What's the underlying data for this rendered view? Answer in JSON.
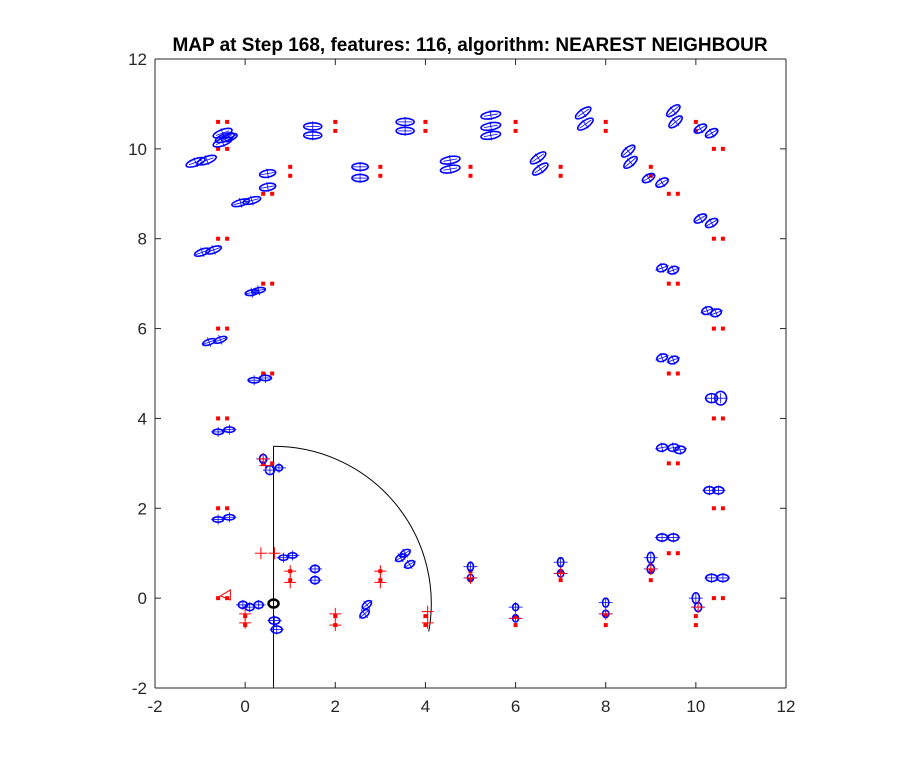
{
  "chart_data": {
    "type": "scatter",
    "title": "MAP at Step 168, features: 116, algorithm: NEAREST NEIGHBOUR",
    "xlabel": "",
    "ylabel": "",
    "xlim": [
      -2,
      12
    ],
    "ylim": [
      -2,
      12
    ],
    "xticks": [
      "-2",
      "0",
      "2",
      "4",
      "6",
      "8",
      "10",
      "12"
    ],
    "yticks": [
      "-2",
      "0",
      "2",
      "4",
      "6",
      "8",
      "10",
      "12"
    ],
    "grid": false,
    "legend": "none",
    "colors": {
      "landmarks": "#ff0000",
      "estimates": "#0000ff",
      "observations": "#ff0000",
      "robot": "#000000",
      "sensor_range": "#000000",
      "axes": "#262626"
    },
    "series": [
      {
        "marker": "square",
        "points": [
          [
            -0.6,
            10.6
          ],
          [
            -0.4,
            10.6
          ],
          [
            -0.6,
            10.0
          ],
          [
            -0.4,
            10.0
          ],
          [
            0.4,
            9.0
          ],
          [
            0.6,
            9.0
          ],
          [
            -0.6,
            8.0
          ],
          [
            -0.4,
            8.0
          ],
          [
            0.4,
            7.0
          ],
          [
            0.6,
            7.0
          ],
          [
            -0.6,
            6.0
          ],
          [
            -0.4,
            6.0
          ],
          [
            0.4,
            5.0
          ],
          [
            0.6,
            5.0
          ],
          [
            -0.6,
            4.0
          ],
          [
            -0.4,
            4.0
          ],
          [
            0.4,
            3.0
          ],
          [
            0.6,
            3.0
          ],
          [
            -0.6,
            2.0
          ],
          [
            -0.4,
            2.0
          ],
          [
            -0.6,
            0.0
          ],
          [
            -0.4,
            0.0
          ],
          [
            0.0,
            -0.4
          ],
          [
            0.0,
            -0.6
          ],
          [
            1.0,
            0.4
          ],
          [
            1.0,
            0.6
          ],
          [
            2.0,
            -0.4
          ],
          [
            2.0,
            -0.6
          ],
          [
            3.0,
            0.4
          ],
          [
            3.0,
            0.6
          ],
          [
            4.0,
            -0.4
          ],
          [
            4.0,
            -0.6
          ],
          [
            5.0,
            0.4
          ],
          [
            5.0,
            0.6
          ],
          [
            6.0,
            -0.4
          ],
          [
            6.0,
            -0.6
          ],
          [
            7.0,
            0.4
          ],
          [
            7.0,
            0.6
          ],
          [
            8.0,
            -0.4
          ],
          [
            8.0,
            -0.6
          ],
          [
            9.0,
            0.4
          ],
          [
            9.0,
            0.6
          ],
          [
            10.0,
            -0.4
          ],
          [
            10.0,
            -0.6
          ],
          [
            10.4,
            0.0
          ],
          [
            10.6,
            0.0
          ],
          [
            9.4,
            1.0
          ],
          [
            9.6,
            1.0
          ],
          [
            10.4,
            2.0
          ],
          [
            10.6,
            2.0
          ],
          [
            9.4,
            3.0
          ],
          [
            9.6,
            3.0
          ],
          [
            10.4,
            4.0
          ],
          [
            10.6,
            4.0
          ],
          [
            9.4,
            5.0
          ],
          [
            9.6,
            5.0
          ],
          [
            10.4,
            6.0
          ],
          [
            10.6,
            6.0
          ],
          [
            9.4,
            7.0
          ],
          [
            9.6,
            7.0
          ],
          [
            10.4,
            8.0
          ],
          [
            10.6,
            8.0
          ],
          [
            9.4,
            9.0
          ],
          [
            9.6,
            9.0
          ],
          [
            10.4,
            10.0
          ],
          [
            10.6,
            10.0
          ],
          [
            10.0,
            10.6
          ],
          [
            10.0,
            10.4
          ],
          [
            9.0,
            9.6
          ],
          [
            9.0,
            9.4
          ],
          [
            8.0,
            10.6
          ],
          [
            8.0,
            10.4
          ],
          [
            7.0,
            9.6
          ],
          [
            7.0,
            9.4
          ],
          [
            6.0,
            10.6
          ],
          [
            6.0,
            10.4
          ],
          [
            5.0,
            9.6
          ],
          [
            5.0,
            9.4
          ],
          [
            4.0,
            10.6
          ],
          [
            4.0,
            10.4
          ],
          [
            3.0,
            9.6
          ],
          [
            3.0,
            9.4
          ],
          [
            2.0,
            10.6
          ],
          [
            2.0,
            10.4
          ],
          [
            1.0,
            9.6
          ],
          [
            1.0,
            9.4
          ]
        ]
      },
      {
        "marker": "ellipse",
        "points": [
          [
            -0.5,
            10.35,
            0.22,
            0.08,
            -20
          ],
          [
            -0.45,
            10.25,
            0.22,
            0.08,
            -20
          ],
          [
            -0.5,
            10.15,
            0.22,
            0.08,
            -20
          ],
          [
            -0.35,
            10.25,
            0.18,
            0.07,
            -20
          ],
          [
            -1.1,
            9.7,
            0.22,
            0.08,
            -20
          ],
          [
            -0.85,
            9.75,
            0.22,
            0.08,
            -20
          ],
          [
            0.5,
            9.45,
            0.18,
            0.08,
            -10
          ],
          [
            0.5,
            9.15,
            0.18,
            0.08,
            -10
          ],
          [
            -0.1,
            8.8,
            0.2,
            0.07,
            -15
          ],
          [
            0.15,
            8.85,
            0.2,
            0.07,
            -15
          ],
          [
            -0.95,
            7.7,
            0.18,
            0.07,
            -20
          ],
          [
            -0.7,
            7.75,
            0.18,
            0.07,
            -20
          ],
          [
            0.15,
            6.8,
            0.15,
            0.06,
            -10
          ],
          [
            0.3,
            6.85,
            0.15,
            0.06,
            -10
          ],
          [
            -0.8,
            5.7,
            0.15,
            0.06,
            -20
          ],
          [
            -0.55,
            5.75,
            0.15,
            0.06,
            -20
          ],
          [
            0.2,
            4.85,
            0.13,
            0.06,
            0
          ],
          [
            0.45,
            4.9,
            0.13,
            0.06,
            0
          ],
          [
            -0.6,
            3.7,
            0.12,
            0.06,
            0
          ],
          [
            -0.35,
            3.75,
            0.12,
            0.06,
            0
          ],
          [
            0.4,
            3.1,
            0.08,
            0.1,
            0
          ],
          [
            0.55,
            2.85,
            0.1,
            0.1,
            0
          ],
          [
            0.75,
            2.9,
            0.08,
            0.07,
            0
          ],
          [
            -0.6,
            1.75,
            0.12,
            0.06,
            0
          ],
          [
            -0.35,
            1.8,
            0.12,
            0.06,
            0
          ],
          [
            0.85,
            0.9,
            0.1,
            0.06,
            0
          ],
          [
            1.05,
            0.95,
            0.1,
            0.06,
            0
          ],
          [
            1.55,
            0.65,
            0.1,
            0.08,
            0
          ],
          [
            1.55,
            0.4,
            0.1,
            0.08,
            0
          ],
          [
            3.55,
            1.0,
            0.12,
            0.07,
            -30
          ],
          [
            3.65,
            0.75,
            0.12,
            0.07,
            -30
          ],
          [
            3.45,
            0.9,
            0.12,
            0.07,
            -30
          ],
          [
            2.7,
            -0.15,
            0.12,
            0.07,
            -40
          ],
          [
            2.65,
            -0.35,
            0.12,
            0.07,
            -40
          ],
          [
            0.65,
            -0.5,
            0.12,
            0.08,
            0
          ],
          [
            0.7,
            -0.7,
            0.12,
            0.08,
            0
          ],
          [
            -0.05,
            -0.15,
            0.1,
            0.08,
            0
          ],
          [
            0.1,
            -0.2,
            0.1,
            0.08,
            0
          ],
          [
            0.3,
            -0.15,
            0.1,
            0.08,
            0
          ],
          [
            5.0,
            0.7,
            0.06,
            0.1,
            0
          ],
          [
            5.0,
            0.45,
            0.06,
            0.08,
            0
          ],
          [
            6.0,
            -0.2,
            0.06,
            0.08,
            0
          ],
          [
            6.0,
            -0.45,
            0.06,
            0.08,
            0
          ],
          [
            7.0,
            0.8,
            0.07,
            0.1,
            0
          ],
          [
            7.0,
            0.55,
            0.07,
            0.08,
            0
          ],
          [
            8.0,
            -0.1,
            0.07,
            0.1,
            0
          ],
          [
            8.0,
            -0.35,
            0.07,
            0.08,
            0
          ],
          [
            9.0,
            0.9,
            0.08,
            0.12,
            0
          ],
          [
            9.0,
            0.65,
            0.08,
            0.1,
            0
          ],
          [
            10.0,
            0.0,
            0.08,
            0.12,
            0
          ],
          [
            10.05,
            -0.2,
            0.08,
            0.1,
            0
          ],
          [
            10.35,
            0.45,
            0.13,
            0.08,
            0
          ],
          [
            10.6,
            0.45,
            0.13,
            0.08,
            0
          ],
          [
            9.25,
            1.35,
            0.12,
            0.08,
            0
          ],
          [
            9.5,
            1.35,
            0.12,
            0.08,
            0
          ],
          [
            10.3,
            2.4,
            0.12,
            0.08,
            0
          ],
          [
            10.5,
            2.4,
            0.12,
            0.08,
            0
          ],
          [
            9.25,
            3.35,
            0.12,
            0.08,
            -10
          ],
          [
            9.5,
            3.35,
            0.12,
            0.08,
            -10
          ],
          [
            9.65,
            3.3,
            0.12,
            0.08,
            -10
          ],
          [
            10.35,
            4.45,
            0.13,
            0.1,
            0
          ],
          [
            10.55,
            4.45,
            0.13,
            0.15,
            0
          ],
          [
            9.25,
            5.35,
            0.12,
            0.08,
            -20
          ],
          [
            9.5,
            5.3,
            0.12,
            0.08,
            -20
          ],
          [
            10.25,
            6.4,
            0.12,
            0.08,
            -20
          ],
          [
            10.45,
            6.35,
            0.12,
            0.08,
            -20
          ],
          [
            9.25,
            7.35,
            0.12,
            0.08,
            -20
          ],
          [
            9.5,
            7.3,
            0.12,
            0.08,
            -20
          ],
          [
            10.1,
            8.45,
            0.15,
            0.08,
            -30
          ],
          [
            10.35,
            8.35,
            0.15,
            0.08,
            -30
          ],
          [
            8.95,
            9.35,
            0.15,
            0.08,
            -30
          ],
          [
            9.25,
            9.25,
            0.15,
            0.08,
            -30
          ],
          [
            10.1,
            10.45,
            0.15,
            0.08,
            -30
          ],
          [
            10.35,
            10.35,
            0.15,
            0.08,
            -30
          ],
          [
            8.5,
            9.95,
            0.18,
            0.08,
            -40
          ],
          [
            8.55,
            9.7,
            0.18,
            0.08,
            -40
          ],
          [
            9.5,
            10.85,
            0.18,
            0.08,
            -40
          ],
          [
            9.55,
            10.6,
            0.18,
            0.08,
            -40
          ],
          [
            6.5,
            9.8,
            0.2,
            0.08,
            -35
          ],
          [
            6.55,
            9.55,
            0.2,
            0.08,
            -35
          ],
          [
            7.5,
            10.8,
            0.2,
            0.08,
            -35
          ],
          [
            7.55,
            10.55,
            0.2,
            0.08,
            -35
          ],
          [
            4.55,
            9.75,
            0.22,
            0.08,
            -10
          ],
          [
            4.55,
            9.55,
            0.22,
            0.08,
            -10
          ],
          [
            5.45,
            10.75,
            0.22,
            0.08,
            -10
          ],
          [
            5.45,
            10.5,
            0.22,
            0.08,
            -10
          ],
          [
            5.45,
            10.3,
            0.22,
            0.08,
            -10
          ],
          [
            2.55,
            9.6,
            0.18,
            0.08,
            0
          ],
          [
            2.55,
            9.35,
            0.18,
            0.08,
            0
          ],
          [
            3.55,
            10.6,
            0.2,
            0.08,
            0
          ],
          [
            3.55,
            10.4,
            0.2,
            0.08,
            0
          ],
          [
            1.5,
            10.5,
            0.2,
            0.08,
            0
          ],
          [
            1.5,
            10.3,
            0.2,
            0.08,
            0
          ]
        ]
      },
      {
        "marker": "cross",
        "points": [
          [
            0.35,
            1.0
          ],
          [
            0.65,
            1.0
          ],
          [
            1.0,
            0.6
          ],
          [
            1.0,
            0.35
          ],
          [
            2.0,
            -0.35
          ],
          [
            2.0,
            -0.6
          ],
          [
            3.0,
            0.6
          ],
          [
            3.0,
            0.35
          ],
          [
            4.05,
            -0.3
          ],
          [
            4.05,
            -0.55
          ],
          [
            0.0,
            -0.35
          ],
          [
            0.0,
            -0.55
          ],
          [
            5.0,
            0.45
          ],
          [
            6.0,
            -0.45
          ],
          [
            7.0,
            0.55
          ],
          [
            8.0,
            -0.35
          ],
          [
            9.0,
            0.65
          ],
          [
            10.05,
            -0.2
          ],
          [
            0.45,
            2.95
          ],
          [
            0.4,
            3.1
          ]
        ]
      }
    ],
    "robot": {
      "x": 0.63,
      "y": -0.12
    },
    "sensor_range": {
      "center": [
        0.63,
        -0.12
      ],
      "radius": 3.5
    }
  }
}
